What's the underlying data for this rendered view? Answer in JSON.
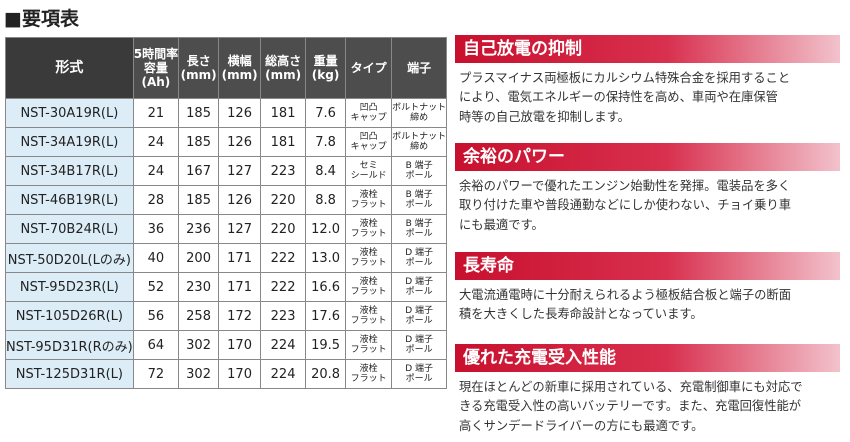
{
  "title": "■要項表",
  "table": {
    "headers": [
      [
        "形式"
      ],
      [
        "5時間率",
        "容量",
        "(Ah)"
      ],
      [
        "長さ",
        "(mm)"
      ],
      [
        "横幅",
        "(mm)"
      ],
      [
        "総高さ",
        "(mm)"
      ],
      [
        "重量",
        "(kg)"
      ],
      [
        "タイプ"
      ],
      [
        "端子"
      ]
    ],
    "rows": [
      [
        [
          "NST-30A19R(L)"
        ],
        [
          "21"
        ],
        [
          "185"
        ],
        [
          "126"
        ],
        [
          "181"
        ],
        [
          "7.6"
        ],
        [
          "凹凸",
          "キャップ"
        ],
        [
          "ボルトナット",
          "締め"
        ]
      ],
      [
        [
          "NST-34A19R(L)"
        ],
        [
          "24"
        ],
        [
          "185"
        ],
        [
          "126"
        ],
        [
          "181"
        ],
        [
          "7.8"
        ],
        [
          "凹凸",
          "キャップ"
        ],
        [
          "ボルトナット",
          "締め"
        ]
      ],
      [
        [
          "NST-34B17R(L)"
        ],
        [
          "24"
        ],
        [
          "167"
        ],
        [
          "127"
        ],
        [
          "223"
        ],
        [
          "8.4"
        ],
        [
          "セミ",
          "シールド"
        ],
        [
          "B 端子",
          "ポール"
        ]
      ],
      [
        [
          "NST-46B19R(L)"
        ],
        [
          "28"
        ],
        [
          "185"
        ],
        [
          "126"
        ],
        [
          "220"
        ],
        [
          "8.8"
        ],
        [
          "液栓",
          "フラット"
        ],
        [
          "B 端子",
          "ポール"
        ]
      ],
      [
        [
          "NST-70B24R(L)"
        ],
        [
          "36"
        ],
        [
          "236"
        ],
        [
          "127"
        ],
        [
          "220"
        ],
        [
          "12.0"
        ],
        [
          "液栓",
          "フラット"
        ],
        [
          "B 端子",
          "ポール"
        ]
      ],
      [
        [
          "NST-50D20L(Lのみ)"
        ],
        [
          "40"
        ],
        [
          "200"
        ],
        [
          "171"
        ],
        [
          "222"
        ],
        [
          "13.0"
        ],
        [
          "液栓",
          "フラット"
        ],
        [
          "D 端子",
          "ポール"
        ]
      ],
      [
        [
          "NST-95D23R(L)"
        ],
        [
          "52"
        ],
        [
          "230"
        ],
        [
          "171"
        ],
        [
          "222"
        ],
        [
          "16.6"
        ],
        [
          "液栓",
          "フラット"
        ],
        [
          "D 端子",
          "ポール"
        ]
      ],
      [
        [
          "NST-105D26R(L)"
        ],
        [
          "56"
        ],
        [
          "258"
        ],
        [
          "172"
        ],
        [
          "223"
        ],
        [
          "17.6"
        ],
        [
          "液栓",
          "フラット"
        ],
        [
          "D 端子",
          "ポール"
        ]
      ],
      [
        [
          "NST-95D31R(Rのみ)"
        ],
        [
          "64"
        ],
        [
          "302"
        ],
        [
          "170"
        ],
        [
          "224"
        ],
        [
          "19.5"
        ],
        [
          "液栓",
          "フラット"
        ],
        [
          "D 端子",
          "ポール"
        ]
      ],
      [
        [
          "NST-125D31R(L)"
        ],
        [
          "72"
        ],
        [
          "302"
        ],
        [
          "170"
        ],
        [
          "224"
        ],
        [
          "20.8"
        ],
        [
          "液栓",
          "フラット"
        ],
        [
          "D 端子",
          "ポール"
        ]
      ]
    ]
  },
  "sections": [
    {
      "title": "自己放電の抑制",
      "lines": [
        "プラスマイナス両極板にカルシウム特殊合金を採用すること",
        "により、電気エネルギーの保持性を高め、車両や在庫保管",
        "時等の自己放電を抑制します。"
      ]
    },
    {
      "title": "余裕のパワー",
      "lines": [
        "余裕のパワーで優れたエンジン始動性を発揮。電装品を多く",
        "取り付けた車や普段通勤などにしか使わない、チョイ乗り車",
        "にも最適です。"
      ]
    },
    {
      "title": "長寿命",
      "lines": [
        "大電流通電時に十分耐えられるよう極板結合板と端子の断面",
        "積を大きくした長寿命設計となっています。"
      ]
    },
    {
      "title": "優れた充電受入性能",
      "lines": [
        "現在ほとんどの新車に採用されている、充電制御車にも対応で",
        "きる充電受入性の高いバッテリーです。また、充電回復性能が",
        "高くサンデードライバーの方にも最適です。"
      ]
    }
  ]
}
